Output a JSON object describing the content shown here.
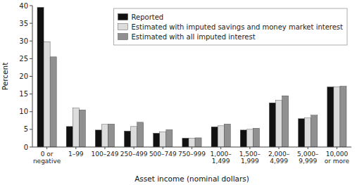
{
  "chart_data": {
    "type": "bar",
    "categories": [
      "0 or\nnegative",
      "1–99",
      "100–249",
      "250–499",
      "500–749",
      "750–999",
      "1,000–\n1,499",
      "1,500–\n1,999",
      "2,000–\n4,999",
      "5,000–\n9,999",
      "10,000\nor more"
    ],
    "series": [
      {
        "name": "Reported",
        "color": "#111111",
        "values": [
          39.5,
          5.8,
          4.8,
          4.5,
          3.9,
          2.5,
          5.7,
          4.8,
          12.5,
          8.0,
          17.0
        ]
      },
      {
        "name": "Estimated with imputed savings and money market interest",
        "color": "#dcdcdc",
        "values": [
          29.8,
          11.0,
          6.4,
          5.8,
          4.3,
          2.5,
          6.0,
          5.0,
          13.2,
          8.2,
          17.0
        ]
      },
      {
        "name": "Estimated with all imputed interest",
        "color": "#909090",
        "values": [
          25.5,
          10.5,
          6.5,
          7.0,
          4.9,
          2.6,
          6.5,
          5.3,
          14.5,
          9.0,
          17.2
        ]
      }
    ],
    "xlabel": "Asset income (nominal dollars)",
    "ylabel": "Percent",
    "ylim": [
      0,
      40
    ],
    "yticks": [
      0,
      5,
      10,
      15,
      20,
      25,
      30,
      35,
      40
    ],
    "grid": false,
    "legend": "upper right"
  }
}
